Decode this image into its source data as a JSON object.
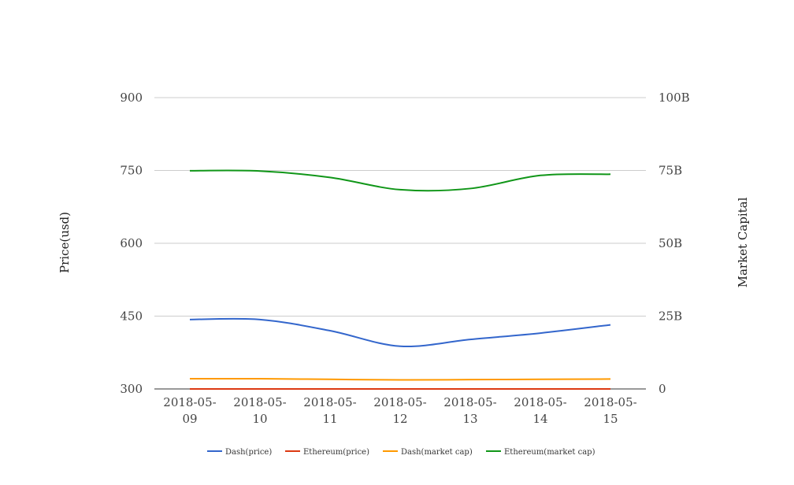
{
  "chart_data": {
    "type": "line",
    "x": [
      "2018-05-09",
      "2018-05-10",
      "2018-05-11",
      "2018-05-12",
      "2018-05-13",
      "2018-05-14",
      "2018-05-15"
    ],
    "x_tick_lines": [
      [
        "2018-05-",
        "09"
      ],
      [
        "2018-05-",
        "10"
      ],
      [
        "2018-05-",
        "11"
      ],
      [
        "2018-05-",
        "12"
      ],
      [
        "2018-05-",
        "13"
      ],
      [
        "2018-05-",
        "14"
      ],
      [
        "2018-05-",
        "15"
      ]
    ],
    "ylabel": "Price(usd)",
    "y2label": "Market Capital",
    "ylim": [
      300,
      900
    ],
    "y2lim": [
      0,
      100000000000
    ],
    "yticks": [
      300,
      450,
      600,
      750,
      900
    ],
    "y2ticks": [
      "0",
      "25B",
      "50B",
      "75B",
      "100B"
    ],
    "grid": true,
    "legend_position": "bottom",
    "series": [
      {
        "name": "Dash(price)",
        "axis": "left",
        "color": "#3366cc",
        "values": [
          443,
          443,
          420,
          388,
          402,
          415,
          432
        ]
      },
      {
        "name": "Ethereum(price)",
        "axis": "right",
        "color": "#dc3912",
        "values": [
          754,
          753,
          725,
          680,
          687,
          731,
          731
        ]
      },
      {
        "name": "Dash(market cap)",
        "axis": "right",
        "color": "#ff9900",
        "values": [
          3500000000,
          3500000000,
          3300000000,
          3100000000,
          3200000000,
          3300000000,
          3400000000
        ]
      },
      {
        "name": "Ethereum(market cap)",
        "axis": "right",
        "color": "#109618",
        "values": [
          74900000000,
          74800000000,
          72600000000,
          68400000000,
          68800000000,
          73300000000,
          73700000000
        ]
      }
    ]
  }
}
